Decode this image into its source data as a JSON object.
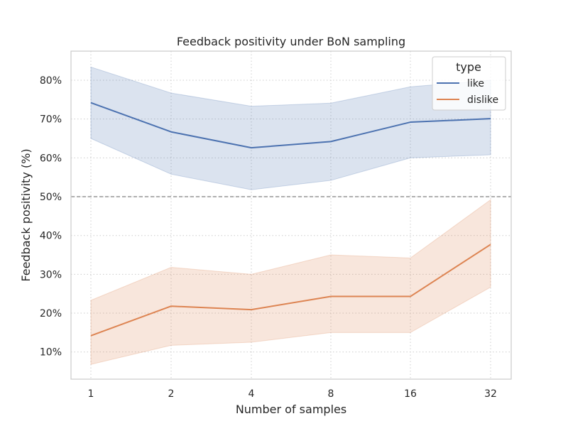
{
  "chart_data": {
    "type": "line",
    "title": "Feedback positivity under BoN sampling",
    "xlabel": "Number of samples",
    "ylabel": "Feedback positivity (%)",
    "categories": [
      "1",
      "2",
      "4",
      "8",
      "16",
      "32"
    ],
    "x_scale": "categorical",
    "ylim": [
      3,
      87.5
    ],
    "yticks": [
      10,
      20,
      30,
      40,
      50,
      60,
      70,
      80
    ],
    "ytick_labels": [
      "10%",
      "20%",
      "30%",
      "40%",
      "50%",
      "60%",
      "70%",
      "80%"
    ],
    "grid": true,
    "reference_line": {
      "y": 50,
      "style": "dashed",
      "color": "#808080"
    },
    "legend": {
      "title": "type",
      "placement": "top-right"
    },
    "series": [
      {
        "name": "like",
        "color": "#4c72b0",
        "values": [
          74.2,
          66.7,
          62.6,
          64.2,
          69.2,
          70.1
        ],
        "ci_lower": [
          65.0,
          55.8,
          51.8,
          54.2,
          60.0,
          60.8
        ],
        "ci_upper": [
          83.4,
          76.7,
          73.3,
          74.1,
          78.3,
          80.0
        ]
      },
      {
        "name": "dislike",
        "color": "#dd8452",
        "values": [
          14.2,
          21.8,
          20.9,
          24.3,
          24.3,
          37.7
        ],
        "ci_lower": [
          6.8,
          11.7,
          12.5,
          15.0,
          15.0,
          26.7
        ],
        "ci_upper": [
          23.3,
          31.8,
          30.0,
          35.0,
          34.2,
          49.2
        ]
      }
    ]
  }
}
